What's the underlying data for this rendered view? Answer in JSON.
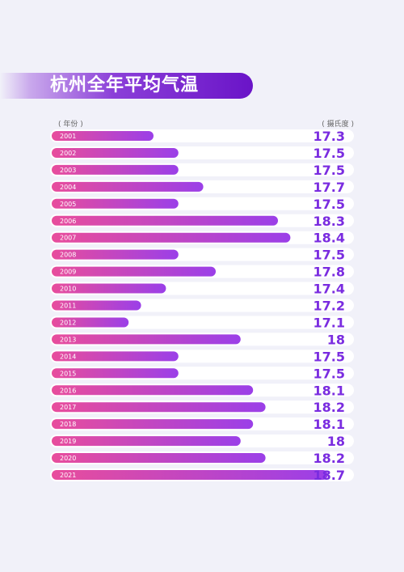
{
  "title": "杭州全年平均气温",
  "x_caption": "( 年份 )",
  "unit_caption": "( 摄氏度 )",
  "colors": {
    "bar_start": "#e84d9c",
    "bar_end": "#9b3fe8",
    "value_text": "#7a2ce0"
  },
  "chart_data": {
    "type": "bar",
    "orientation": "horizontal",
    "categories": [
      "2001",
      "2002",
      "2003",
      "2004",
      "2005",
      "2006",
      "2007",
      "2008",
      "2009",
      "2010",
      "2011",
      "2012",
      "2013",
      "2014",
      "2015",
      "2016",
      "2017",
      "2018",
      "2019",
      "2020",
      "2021"
    ],
    "values": [
      "17.3",
      "17.5",
      "17.5",
      "17.7",
      "17.5",
      "18.3",
      "18.4",
      "17.5",
      "17.8",
      "17.4",
      "17.2",
      "17.1",
      "18",
      "17.5",
      "17.5",
      "18.1",
      "18.2",
      "18.1",
      "18",
      "18.2",
      "18.7"
    ]
  }
}
